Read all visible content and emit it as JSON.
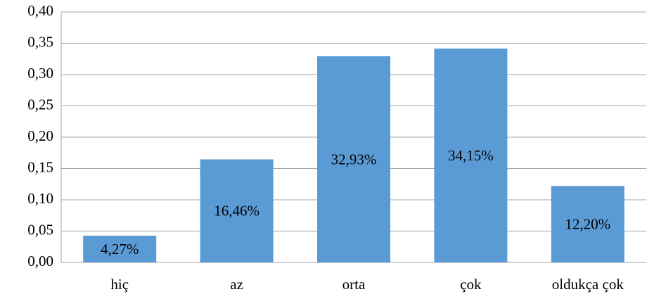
{
  "chart_data": {
    "type": "bar",
    "categories": [
      "hiç",
      "az",
      "orta",
      "çok",
      "oldukça çok"
    ],
    "values": [
      0.0427,
      0.1646,
      0.3293,
      0.3415,
      0.122
    ],
    "value_labels": [
      "4,27%",
      "16,46%",
      "32,93%",
      "34,15%",
      "12,20%"
    ],
    "color": "#5b9bd5",
    "ylim": [
      0,
      0.4
    ],
    "yticks": [
      {
        "value": 0,
        "label": "0,00"
      },
      {
        "value": 0.05,
        "label": "0,05"
      },
      {
        "value": 0.1,
        "label": "0,10"
      },
      {
        "value": 0.15,
        "label": "0,15"
      },
      {
        "value": 0.2,
        "label": "0,20"
      },
      {
        "value": 0.25,
        "label": "0,25"
      },
      {
        "value": 0.3,
        "label": "0,30"
      },
      {
        "value": 0.35,
        "label": "0,35"
      },
      {
        "value": 0.4,
        "label": "0,40"
      }
    ],
    "grid": true
  }
}
